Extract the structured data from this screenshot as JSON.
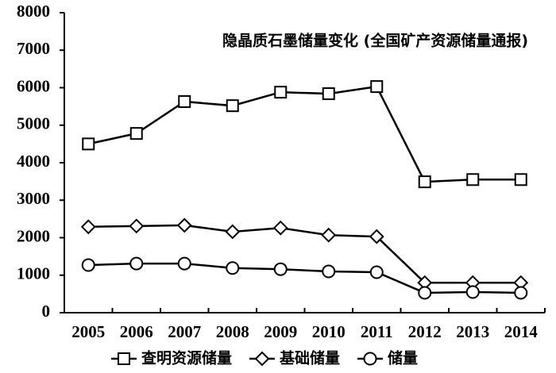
{
  "chart_data": {
    "type": "line",
    "title": "隐晶质石墨储量变化 (全国矿产资源储量通报)",
    "categories": [
      "2005",
      "2006",
      "2007",
      "2008",
      "2009",
      "2010",
      "2011",
      "2012",
      "2013",
      "2014"
    ],
    "series": [
      {
        "name": "查明资源储量",
        "color": "#000000",
        "marker": "square",
        "values": [
          4500,
          4780,
          5630,
          5520,
          5880,
          5840,
          6030,
          3490,
          3550,
          3550
        ]
      },
      {
        "name": "基础储量",
        "color": "#000000",
        "marker": "diamond",
        "values": [
          2290,
          2310,
          2330,
          2160,
          2260,
          2070,
          2030,
          800,
          800,
          800
        ]
      },
      {
        "name": "储量",
        "color": "#000000",
        "marker": "circle",
        "values": [
          1270,
          1310,
          1310,
          1190,
          1160,
          1100,
          1080,
          530,
          550,
          530
        ]
      }
    ],
    "ylim": [
      0,
      8000
    ],
    "yticks": [
      0,
      1000,
      2000,
      3000,
      4000,
      5000,
      6000,
      7000,
      8000
    ],
    "grid": false,
    "legend": "bottom"
  }
}
